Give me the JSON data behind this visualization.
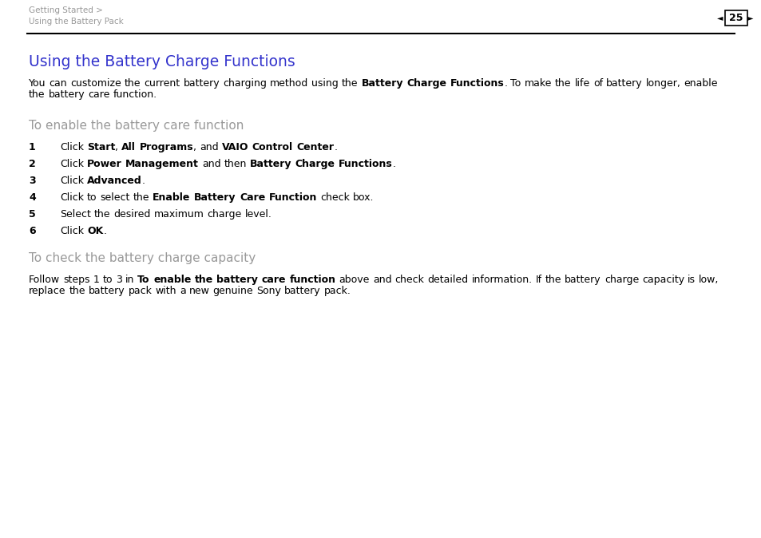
{
  "bg_color": "#ffffff",
  "header_breadcrumb_line1": "Getting Started >",
  "header_breadcrumb_line2": "Using the Battery Pack",
  "page_number": "25",
  "breadcrumb_color": "#999999",
  "title": "Using the Battery Charge Functions",
  "title_color": "#3333cc",
  "title_font_size": 13.5,
  "section1_heading": "To enable the battery care function",
  "section1_heading_color": "#999999",
  "section2_heading": "To check the battery charge capacity",
  "section2_heading_color": "#999999",
  "body_font_size": 9.0,
  "section_heading_font_size": 11.0,
  "text_color": "#000000"
}
